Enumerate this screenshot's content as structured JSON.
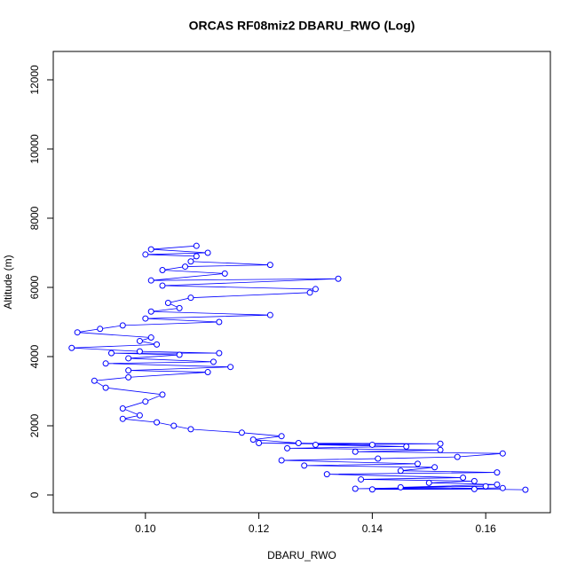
{
  "chart_data": {
    "type": "scatter",
    "title": "ORCAS RF08miz2 DBARU_RWO (Log)",
    "x_label": "DBARU_RWO",
    "y_label": "Altitude (m)",
    "color": "#0000ff",
    "x": [
      0.167,
      0.158,
      0.14,
      0.163,
      0.137,
      0.16,
      0.145,
      0.162,
      0.15,
      0.158,
      0.138,
      0.156,
      0.132,
      0.162,
      0.145,
      0.151,
      0.128,
      0.148,
      0.124,
      0.141,
      0.155,
      0.163,
      0.137,
      0.152,
      0.125,
      0.146,
      0.13,
      0.152,
      0.12,
      0.14,
      0.127,
      0.119,
      0.124,
      0.117,
      0.108,
      0.105,
      0.102,
      0.096,
      0.099,
      0.096,
      0.1,
      0.103,
      0.093,
      0.091,
      0.097,
      0.111,
      0.097,
      0.115,
      0.093,
      0.112,
      0.097,
      0.106,
      0.094,
      0.113,
      0.099,
      0.087,
      0.102,
      0.099,
      0.101,
      0.088,
      0.092,
      0.096,
      0.113,
      0.1,
      0.122,
      0.101,
      0.106,
      0.104,
      0.108,
      0.129,
      0.13,
      0.103,
      0.134,
      0.101,
      0.114,
      0.103,
      0.107,
      0.122,
      0.108,
      0.109,
      0.1,
      0.111,
      0.101,
      0.109
    ],
    "values": [
      150,
      170,
      160,
      200,
      180,
      250,
      220,
      300,
      350,
      400,
      450,
      500,
      600,
      650,
      700,
      800,
      850,
      900,
      1000,
      1050,
      1100,
      1200,
      1250,
      1300,
      1350,
      1400,
      1450,
      1480,
      1500,
      1450,
      1500,
      1600,
      1700,
      1800,
      1900,
      2000,
      2100,
      2200,
      2300,
      2500,
      2700,
      2900,
      3100,
      3300,
      3400,
      3550,
      3600,
      3700,
      3800,
      3850,
      3950,
      4050,
      4100,
      4100,
      4150,
      4250,
      4350,
      4450,
      4550,
      4700,
      4800,
      4900,
      5000,
      5100,
      5200,
      5300,
      5400,
      5550,
      5700,
      5850,
      5950,
      6050,
      6250,
      6200,
      6400,
      6500,
      6600,
      6650,
      6750,
      6900,
      6950,
      7000,
      7100,
      7200
    ],
    "xlim": [
      0.08375,
      0.1714
    ],
    "ylim": [
      -513,
      12820
    ],
    "xticks": [
      {
        "value": 0.1,
        "label": "0.10"
      },
      0.12,
      0.14,
      0.16
    ],
    "yticks": [
      0,
      2000,
      4000,
      6000,
      8000,
      10000,
      12000
    ]
  }
}
